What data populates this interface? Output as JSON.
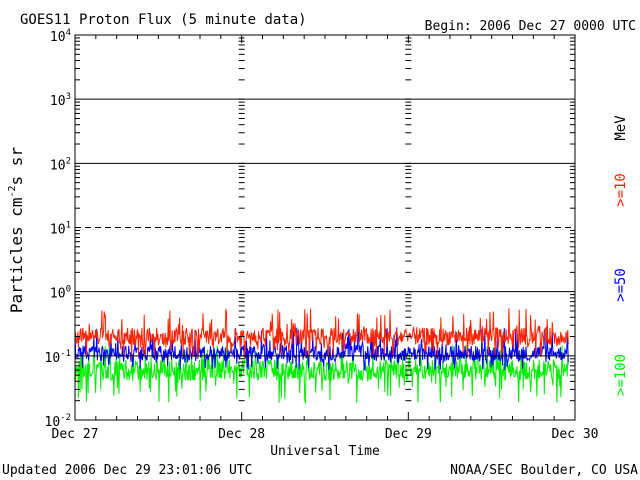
{
  "chart_data": {
    "type": "line",
    "title": "GOES11 Proton Flux (5 minute data)",
    "begin_label": "Begin: 2006 Dec 27 0000 UTC",
    "xlabel": "Universal Time",
    "ylabel_base": "Particles cm",
    "ylabel_units": "s sr",
    "ylabel_sup": [
      "-2",
      "-1",
      "-1"
    ],
    "x_ticks": [
      "Dec 27",
      "Dec 28",
      "Dec 29",
      "Dec 30"
    ],
    "x_range_days": [
      0,
      3
    ],
    "y_scale": "log",
    "y_range": [
      0.01,
      10000
    ],
    "y_ticks": [
      {
        "base": "10",
        "exp": "-2"
      },
      {
        "base": "10",
        "exp": "-1"
      },
      {
        "base": "10",
        "exp": "0"
      },
      {
        "base": "10",
        "exp": "1"
      },
      {
        "base": "10",
        "exp": "2"
      },
      {
        "base": "10",
        "exp": "3"
      },
      {
        "base": "10",
        "exp": "4"
      }
    ],
    "unit_label": "MeV",
    "series": [
      {
        "name": ">=10",
        "color": "#ff2200",
        "typical": 0.2,
        "min": 0.09,
        "max": 0.55
      },
      {
        "name": ">=50",
        "color": "#0000ff",
        "typical": 0.11,
        "min": 0.06,
        "max": 0.28
      },
      {
        "name": ">=100",
        "color": "#00ee00",
        "typical": 0.06,
        "min": 0.018,
        "max": 0.15
      }
    ]
  },
  "footer": {
    "updated": "Updated 2006 Dec 29 23:01:06 UTC",
    "credit": "NOAA/SEC Boulder, CO USA"
  }
}
